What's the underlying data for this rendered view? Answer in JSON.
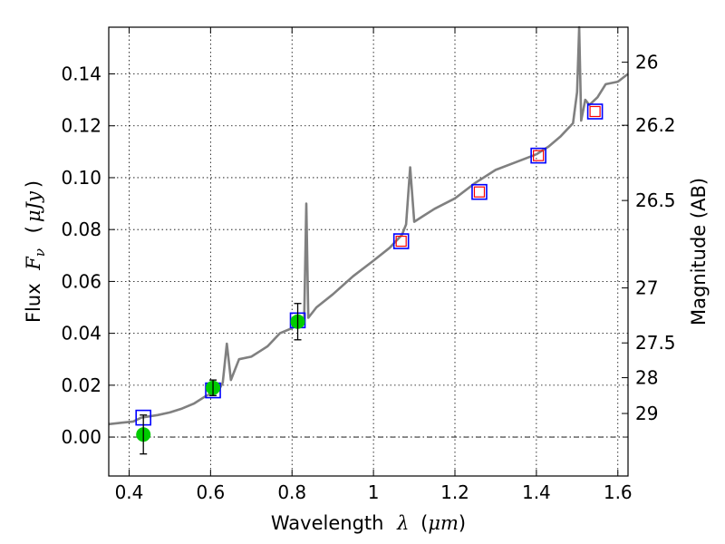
{
  "chart_data": {
    "type": "scatter",
    "xlabel": {
      "pre": "Wavelength",
      "sym": "λ",
      "unit_open": "(",
      "unit": "μm",
      "unit_close": ")"
    },
    "ylabel": {
      "pre": "Flux",
      "sym": "F",
      "sub": "ν",
      "unit_open": "(",
      "unit": "μJy",
      "unit_close": ")"
    },
    "ylabel_right": "Magnitude (AB)",
    "xlim": [
      0.35,
      1.625
    ],
    "ylim": [
      -0.015,
      0.158
    ],
    "x_ticks": [
      0.4,
      0.6,
      0.8,
      1.0,
      1.2,
      1.4,
      1.6
    ],
    "x_tick_labels": [
      "0.4",
      "0.6",
      "0.8",
      "1",
      "1.2",
      "1.4",
      "1.6"
    ],
    "y_ticks": [
      0.0,
      0.02,
      0.04,
      0.06,
      0.08,
      0.1,
      0.12,
      0.14
    ],
    "y_tick_labels": [
      "0.00",
      "0.02",
      "0.04",
      "0.06",
      "0.08",
      "0.10",
      "0.12",
      "0.14"
    ],
    "right_ticks": [
      {
        "label": "26",
        "flux": 0.1445
      },
      {
        "label": "26.2",
        "flux": 0.1202
      },
      {
        "label": "26.5",
        "flux": 0.0912
      },
      {
        "label": "27",
        "flux": 0.0575
      },
      {
        "label": "27.5",
        "flux": 0.0363
      },
      {
        "label": "28",
        "flux": 0.0229
      },
      {
        "label": "29",
        "flux": 0.0091
      }
    ],
    "grid": true,
    "zero_line": true,
    "colors": {
      "template": "#808080",
      "photometry": "#00cc00",
      "model": "#0000ff",
      "spectro": "#ff0000"
    },
    "template_spectrum": {
      "x": [
        0.35,
        0.38,
        0.41,
        0.43,
        0.45,
        0.47,
        0.5,
        0.53,
        0.56,
        0.59,
        0.62,
        0.63,
        0.64,
        0.65,
        0.67,
        0.7,
        0.72,
        0.74,
        0.77,
        0.8,
        0.82,
        0.83,
        0.835,
        0.84,
        0.86,
        0.9,
        0.95,
        1.0,
        1.04,
        1.07,
        1.08,
        1.09,
        1.1,
        1.12,
        1.15,
        1.2,
        1.25,
        1.3,
        1.35,
        1.4,
        1.43,
        1.46,
        1.49,
        1.5,
        1.505,
        1.51,
        1.52,
        1.53,
        1.55,
        1.57,
        1.6,
        1.625
      ],
      "y": [
        0.005,
        0.0055,
        0.006,
        0.0075,
        0.008,
        0.0085,
        0.0095,
        0.011,
        0.013,
        0.016,
        0.018,
        0.021,
        0.036,
        0.022,
        0.03,
        0.031,
        0.033,
        0.035,
        0.04,
        0.042,
        0.044,
        0.046,
        0.09,
        0.046,
        0.05,
        0.055,
        0.062,
        0.068,
        0.073,
        0.078,
        0.082,
        0.104,
        0.083,
        0.085,
        0.088,
        0.092,
        0.098,
        0.103,
        0.106,
        0.109,
        0.112,
        0.116,
        0.121,
        0.133,
        0.158,
        0.122,
        0.13,
        0.128,
        0.131,
        0.136,
        0.137,
        0.14
      ]
    },
    "photometry": [
      {
        "x": 0.435,
        "y": 0.001,
        "err": 0.0075
      },
      {
        "x": 0.606,
        "y": 0.019,
        "err": 0.003
      },
      {
        "x": 0.814,
        "y": 0.0445,
        "err": 0.007
      }
    ],
    "model_points": [
      {
        "x": 0.435,
        "y": 0.0075
      },
      {
        "x": 0.606,
        "y": 0.018
      },
      {
        "x": 0.814,
        "y": 0.045
      },
      {
        "x": 1.068,
        "y": 0.0755
      },
      {
        "x": 1.26,
        "y": 0.0945
      },
      {
        "x": 1.405,
        "y": 0.1085
      },
      {
        "x": 1.544,
        "y": 0.1255
      }
    ],
    "spectro_points": [
      {
        "x": 1.068,
        "y": 0.0755
      },
      {
        "x": 1.26,
        "y": 0.0945
      },
      {
        "x": 1.405,
        "y": 0.1085
      },
      {
        "x": 1.544,
        "y": 0.1255
      }
    ]
  }
}
